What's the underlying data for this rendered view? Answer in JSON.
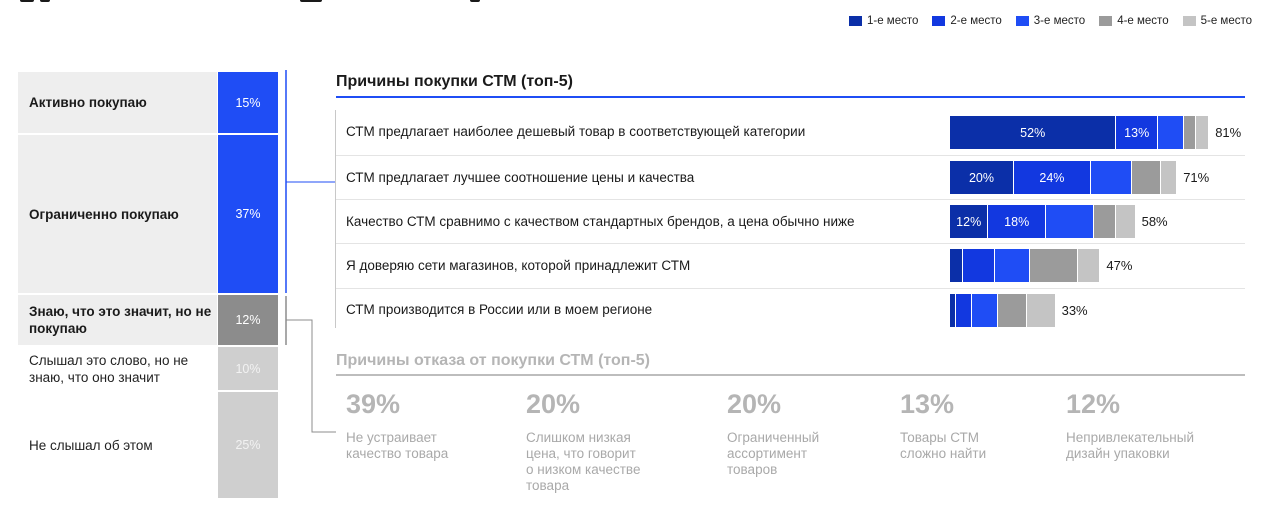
{
  "legend": [
    {
      "label": "1-е место",
      "color": "#0b2fa8"
    },
    {
      "label": "2-е место",
      "color": "#1238e0"
    },
    {
      "label": "3-е место",
      "color": "#1f4df5"
    },
    {
      "label": "4-е место",
      "color": "#9b9b9b"
    },
    {
      "label": "5-е место",
      "color": "#c4c4c4"
    }
  ],
  "awareness": [
    {
      "label": "Активно покупаю",
      "value": "15%",
      "color": "#1f4df5",
      "style": "bold"
    },
    {
      "label": "Ограниченно покупаю",
      "value": "37%",
      "color": "#1f4df5",
      "style": "bold"
    },
    {
      "label": "Знаю, что это значит, но не покупаю",
      "value": "12%",
      "color": "#8c8c8c",
      "style": "bold"
    },
    {
      "label": "Слышал это слово, но не знаю, что оно значит",
      "value": "10%",
      "color": "#cfcfcf",
      "style": "light"
    },
    {
      "label": "Не слышал об этом",
      "value": "25%",
      "color": "#cfcfcf",
      "style": "light"
    }
  ],
  "purchase_title": "Причины покупки СТМ (топ-5)",
  "refusal_title": "Причины отказа от покупки СТМ (топ-5)",
  "chart_data": {
    "type": "bar",
    "stacked": true,
    "orientation": "horizontal",
    "title": "Причины покупки СТМ (топ-5)",
    "categories": [
      "СТМ предлагает наиболее дешевый товар в соответствующей категории",
      "СТМ предлагает лучшее соотношение цены и качества",
      "Качество СТМ сравнимо с качеством стандартных брендов, а цена обычно ниже",
      "Я доверяю сети магазинов, которой принадлежит СТМ",
      "СТМ производится в России или в моем регионе"
    ],
    "series": [
      {
        "name": "1-е место",
        "values": [
          52,
          20,
          12,
          4,
          2
        ],
        "labels": [
          "52%",
          "20%",
          "12%",
          "",
          ""
        ]
      },
      {
        "name": "2-е место",
        "values": [
          13,
          24,
          18,
          10,
          5
        ],
        "labels": [
          "13%",
          "24%",
          "18%",
          "",
          ""
        ]
      },
      {
        "name": "3-е место",
        "values": [
          8,
          13,
          15,
          11,
          8
        ],
        "labels": [
          "",
          "",
          "",
          "",
          ""
        ]
      },
      {
        "name": "4-е место",
        "values": [
          4,
          9,
          7,
          15,
          9
        ],
        "labels": [
          "",
          "",
          "",
          "",
          ""
        ]
      },
      {
        "name": "5-е место",
        "values": [
          4,
          5,
          6,
          7,
          9
        ],
        "labels": [
          "",
          "",
          "",
          "",
          ""
        ]
      }
    ],
    "totals": [
      "81%",
      "71%",
      "58%",
      "47%",
      "33%"
    ],
    "xlim": [
      0,
      100
    ]
  },
  "refusal": [
    {
      "pct": "39%",
      "label": "Не устраивает\nкачество товара"
    },
    {
      "pct": "20%",
      "label": "Слишком низкая\nцена, что говорит\nо низком качестве\nтовара"
    },
    {
      "pct": "20%",
      "label": "Ограниченный\nассортимент\nтоваров"
    },
    {
      "pct": "13%",
      "label": "Товары СТМ\nсложно найти"
    },
    {
      "pct": "12%",
      "label": "Непривлекательный\nдизайн упаковки"
    }
  ]
}
